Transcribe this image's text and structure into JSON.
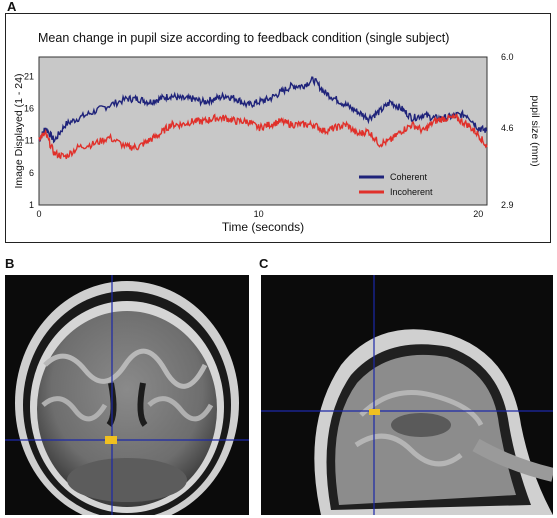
{
  "panels": {
    "a": "A",
    "b": "B",
    "c": "C"
  },
  "chart_data": {
    "type": "line",
    "title": "Mean change in pupil size according to feedback condition (single subject)",
    "xlabel": "Time (seconds)",
    "ylabel_left": "Image Displayed (1 - 24)",
    "ylabel_right": "pupil size (mm)",
    "xlim": [
      0,
      20.4
    ],
    "ylim": [
      1,
      24
    ],
    "x_ticks": [
      "0",
      "10",
      "20"
    ],
    "y_ticks_left": [
      "1",
      "6",
      "11",
      "16",
      "21"
    ],
    "y_ticks_right": [
      "2.9",
      "4.6",
      "6.0"
    ],
    "legend_position": "bottom-right",
    "background": "#c8c8c8",
    "series": [
      {
        "name": "Coherent",
        "color": "#1f237a",
        "x": [
          0,
          0.3,
          0.7,
          1.2,
          1.8,
          2.5,
          3.2,
          4,
          4.5,
          5,
          5.5,
          6,
          6.5,
          7,
          7.5,
          8,
          8.5,
          9,
          9.5,
          10,
          10.5,
          11,
          11.5,
          12,
          12.5,
          13,
          13.5,
          14,
          14.5,
          15,
          15.5,
          16,
          16.5,
          17,
          17.5,
          18,
          18.5,
          19,
          19.5,
          20,
          20.4
        ],
        "values": [
          11,
          13,
          11,
          13.5,
          14.5,
          15.5,
          16.5,
          17.5,
          17.5,
          17,
          17.5,
          18,
          17.5,
          17.5,
          17,
          17.5,
          18,
          17.5,
          16.5,
          17,
          17.5,
          18.5,
          19.5,
          19.5,
          20.5,
          18.5,
          17.5,
          16.5,
          15.5,
          14.5,
          15.5,
          17,
          16,
          14.5,
          15,
          14.5,
          14.5,
          15,
          15,
          13,
          12.5
        ]
      },
      {
        "name": "Incoherent",
        "color": "#e0302a",
        "x": [
          0,
          0.3,
          0.7,
          1.2,
          1.8,
          2.5,
          3.2,
          4,
          4.5,
          5,
          5.5,
          6,
          6.5,
          7,
          7.5,
          8,
          8.5,
          9,
          9.5,
          10,
          10.5,
          11,
          11.5,
          12,
          12.5,
          13,
          13.5,
          14,
          14.5,
          15,
          15.5,
          16,
          16.5,
          17,
          17.5,
          18,
          18.5,
          19,
          19.5,
          20,
          20.4
        ],
        "values": [
          11.5,
          12,
          9,
          8.5,
          10,
          10.5,
          11.5,
          10,
          10,
          11,
          12,
          13.5,
          13.5,
          14,
          14,
          14.5,
          14.5,
          14,
          14,
          13,
          13.5,
          14,
          13.5,
          13.5,
          13.5,
          12.5,
          13,
          13.5,
          12,
          12.5,
          10.5,
          11,
          12.5,
          13.5,
          12.5,
          14,
          14.5,
          14.5,
          13.5,
          12,
          10
        ]
      }
    ]
  },
  "colors": {
    "crosshair": "#1c28a8",
    "activation": "#f0c020"
  }
}
